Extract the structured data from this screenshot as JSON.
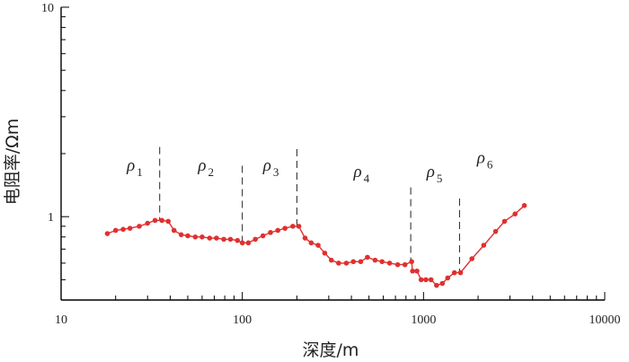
{
  "chart_data": {
    "type": "line",
    "xlabel": "深度/m",
    "ylabel": "电阻率/Ωm",
    "xscale": "log",
    "yscale": "log",
    "xlim": [
      10,
      10000
    ],
    "ylim": [
      0.4,
      10
    ],
    "x_tick_labels": [
      "10",
      "100",
      "1000",
      "10000"
    ],
    "y_tick_labels": [
      "1",
      "10"
    ],
    "line_color": "#e03030",
    "series": [
      {
        "x": [
          18,
          20,
          22,
          24,
          27,
          30,
          33,
          36,
          39,
          42,
          46,
          50,
          55,
          60,
          66,
          72,
          79,
          86,
          94,
          100,
          108,
          118,
          130,
          143,
          157,
          172,
          190,
          205,
          222,
          240,
          262,
          285,
          310,
          340,
          375,
          410,
          450,
          490,
          540,
          590,
          650,
          720,
          790,
          860,
          870,
          920,
          970,
          1030,
          1100,
          1180,
          1270,
          1360,
          1480,
          1600,
          1850,
          2150,
          2500,
          2800,
          3200,
          3600
        ],
        "y": [
          0.83,
          0.86,
          0.87,
          0.88,
          0.9,
          0.93,
          0.96,
          0.96,
          0.95,
          0.86,
          0.82,
          0.81,
          0.8,
          0.8,
          0.79,
          0.79,
          0.78,
          0.78,
          0.77,
          0.75,
          0.75,
          0.78,
          0.81,
          0.84,
          0.86,
          0.88,
          0.9,
          0.9,
          0.79,
          0.75,
          0.73,
          0.67,
          0.62,
          0.6,
          0.6,
          0.61,
          0.61,
          0.64,
          0.62,
          0.61,
          0.6,
          0.59,
          0.59,
          0.61,
          0.55,
          0.55,
          0.5,
          0.5,
          0.5,
          0.47,
          0.48,
          0.51,
          0.54,
          0.54,
          0.63,
          0.73,
          0.85,
          0.95,
          1.03,
          1.13
        ]
      }
    ],
    "boundaries": [
      {
        "x": 35,
        "y_top": 2.15,
        "y_bottom": 0.96
      },
      {
        "x": 100,
        "y_top": 1.75,
        "y_bottom": 0.75
      },
      {
        "x": 200,
        "y_top": 2.1,
        "y_bottom": 0.9
      },
      {
        "x": 850,
        "y_top": 1.38,
        "y_bottom": 0.6
      },
      {
        "x": 1580,
        "y_top": 1.22,
        "y_bottom": 0.54
      }
    ],
    "layer_labels": [
      {
        "x": 25.5,
        "y": 1.66,
        "sym": "ρ",
        "sub": "1"
      },
      {
        "x": 63,
        "y": 1.66,
        "sym": "ρ",
        "sub": "2"
      },
      {
        "x": 144,
        "y": 1.66,
        "sym": "ρ",
        "sub": "3"
      },
      {
        "x": 455,
        "y": 1.55,
        "sym": "ρ",
        "sub": "4"
      },
      {
        "x": 1150,
        "y": 1.55,
        "sym": "ρ",
        "sub": "5"
      },
      {
        "x": 2180,
        "y": 1.8,
        "sym": "ρ",
        "sub": "6"
      }
    ]
  }
}
